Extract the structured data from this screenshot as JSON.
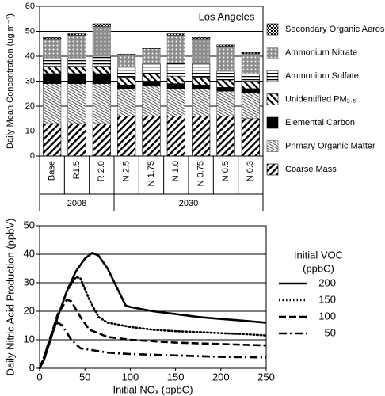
{
  "chart_data": [
    {
      "type": "bar",
      "annotation": "Los Angeles",
      "y_label": "Daily Mean Concentration (ug m⁻³)",
      "categories": [
        "Base",
        "R1.5",
        "R 2.0",
        "N 2.5",
        "N 1.75",
        "N 1.0",
        "N 0.75",
        "N 0.5",
        "N 0.3"
      ],
      "groups": [
        {
          "name": "2008",
          "count": 3
        },
        {
          "name": "2030",
          "count": 6
        }
      ],
      "stacked": true,
      "ylim": [
        0,
        60
      ],
      "yticks": [
        0,
        10,
        20,
        30,
        40,
        50,
        60
      ],
      "grid": true,
      "series": [
        {
          "name": "Coarse Mass",
          "pattern": "diagonal",
          "color": "#000000",
          "values": [
            13,
            13,
            13,
            16,
            16,
            16,
            16,
            16,
            15
          ]
        },
        {
          "name": "Primary Organic Matter",
          "pattern": "fine-diagonal",
          "color": "#555555",
          "values": [
            16,
            16,
            16,
            11,
            12,
            11,
            11,
            10,
            10.5
          ]
        },
        {
          "name": "Elemental Carbon",
          "pattern": "solid",
          "color": "#000000",
          "values": [
            4,
            4,
            4,
            1.5,
            2,
            2,
            1.5,
            1.5,
            1.5
          ]
        },
        {
          "name": "Unidentified PM₂.₅",
          "pattern": "back-diagonal",
          "color": "#000000",
          "values": [
            3,
            3,
            3,
            3,
            3,
            3,
            3,
            3,
            3
          ]
        },
        {
          "name": "Ammonium Sulfate",
          "pattern": "horizontal",
          "color": "#000000",
          "values": [
            3.5,
            3.5,
            4,
            4,
            4,
            5.5,
            5.5,
            3.5,
            3
          ]
        },
        {
          "name": "Ammonium Nitrate",
          "pattern": "dots",
          "color": "#8c8c8c",
          "values": [
            7.5,
            9,
            12,
            5,
            6,
            11,
            10,
            10,
            8
          ]
        },
        {
          "name": "Secondary Organic Aerosol",
          "pattern": "checker",
          "color": "#000000",
          "values": [
            0.5,
            0.5,
            1,
            0.3,
            0.3,
            0.5,
            0.5,
            0.5,
            0.5
          ]
        }
      ]
    },
    {
      "type": "line",
      "x_label": "Initial NOₓ (ppbC)",
      "y_label": "Daily Nitric Acid Production (ppbV)",
      "legend_title": [
        "Initial VOC",
        "(ppbC)"
      ],
      "xlim": [
        0,
        250
      ],
      "xticks": [
        0,
        50,
        100,
        150,
        200,
        250
      ],
      "ylim": [
        0,
        50
      ],
      "yticks": [
        0,
        10,
        20,
        30,
        40,
        50
      ],
      "grid": true,
      "series": [
        {
          "name": "200",
          "color": "#000000",
          "dash": "solid",
          "x": [
            0,
            5,
            10,
            20,
            30,
            40,
            50,
            58,
            65,
            75,
            85,
            95,
            100,
            125,
            150,
            175,
            200,
            225,
            250
          ],
          "values": [
            0,
            3,
            8,
            18,
            27,
            34,
            38.5,
            40.5,
            39.5,
            35,
            28.5,
            22,
            21.5,
            20,
            19,
            18,
            17.3,
            16.7,
            16
          ]
        },
        {
          "name": "150",
          "color": "#000000",
          "dash": "dotted",
          "x": [
            0,
            5,
            10,
            20,
            30,
            40,
            45,
            55,
            65,
            75,
            100,
            125,
            150,
            175,
            200,
            225,
            250
          ],
          "values": [
            0,
            3.5,
            8,
            18,
            27,
            32,
            31.5,
            24,
            18,
            16,
            14.5,
            13.5,
            13,
            12.7,
            12.3,
            12,
            11.5
          ]
        },
        {
          "name": "100",
          "color": "#000000",
          "dash": "dashed",
          "x": [
            0,
            5,
            10,
            20,
            30,
            35,
            45,
            55,
            75,
            100,
            150,
            200,
            250
          ],
          "values": [
            0,
            4,
            9,
            19,
            24,
            23.5,
            18,
            13.5,
            11,
            10,
            9,
            8.5,
            8
          ]
        },
        {
          "name": "50",
          "color": "#000000",
          "dash": "dash-dot",
          "x": [
            0,
            5,
            10,
            15,
            20,
            25,
            35,
            45,
            75,
            100,
            150,
            200,
            250
          ],
          "values": [
            0,
            4,
            9,
            13.5,
            16,
            15,
            10,
            7,
            5.5,
            5,
            4.5,
            4,
            3.8
          ]
        }
      ]
    }
  ]
}
